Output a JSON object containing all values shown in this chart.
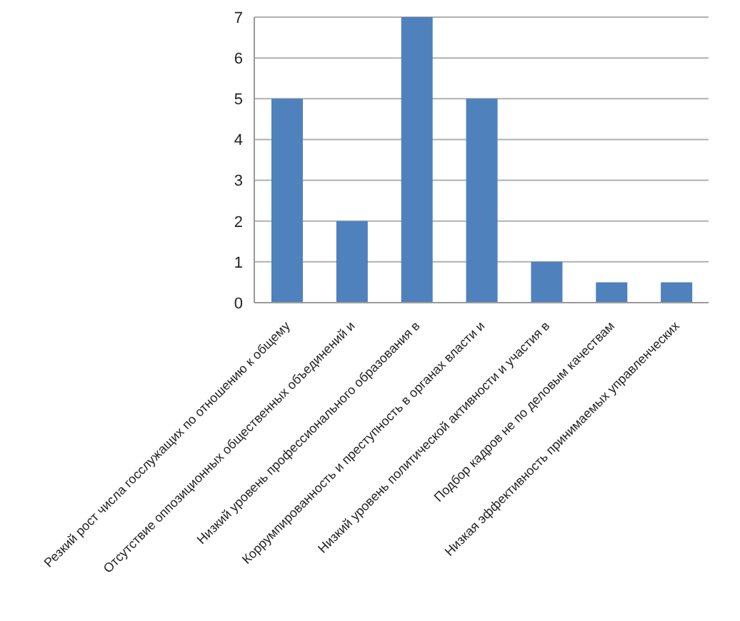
{
  "chart_data": {
    "type": "bar",
    "categories": [
      "Резкий рост числа госслужащих по отношению к общему",
      "Отсутствие оппозиционных общественных объединений и",
      "Низкий уровень профессионального образования в",
      "Коррумпированность и преступность в органах власти и",
      "Низкий уровень политической активности и участия в",
      "Подбор кадров не по деловым качествам",
      "Низкая эффективность принимаемых управленческих"
    ],
    "values": [
      5,
      2,
      7,
      5,
      1,
      0.5,
      0.5
    ],
    "color": "#4f81bd",
    "ylim": [
      0,
      7
    ],
    "yticks": [
      0,
      1,
      2,
      3,
      4,
      5,
      6,
      7
    ],
    "grid": "y"
  }
}
